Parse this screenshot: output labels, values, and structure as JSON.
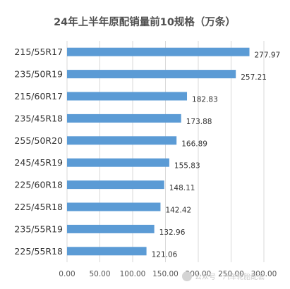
{
  "chart_data": {
    "type": "bar",
    "orientation": "horizontal",
    "title": "24年上半年原配销量前10规格（万条）",
    "categories": [
      "215/55R17",
      "235/50R19",
      "215/60R17",
      "235/45R18",
      "255/50R20",
      "245/45R19",
      "225/60R18",
      "225/45R18",
      "235/55R19",
      "225/55R18"
    ],
    "values": [
      277.97,
      257.21,
      182.83,
      173.88,
      166.89,
      155.83,
      148.11,
      142.42,
      132.96,
      121.06
    ],
    "value_labels": [
      "277.97",
      "257.21",
      "182.83",
      "173.88",
      "166.89",
      "155.83",
      "148.11",
      "142.42",
      "132.96",
      "121.06"
    ],
    "xlim": [
      0,
      300
    ],
    "xticks": [
      0,
      50,
      100,
      150,
      200,
      250,
      300
    ],
    "xtick_labels": [
      "0.00",
      "50.00",
      "100.00",
      "150.00",
      "200.00",
      "250.00",
      "300.00"
    ],
    "grid": true,
    "bar_color": "#5b9bd5"
  },
  "watermark": {
    "text": "公众号 · 汽车轮胎配套"
  }
}
